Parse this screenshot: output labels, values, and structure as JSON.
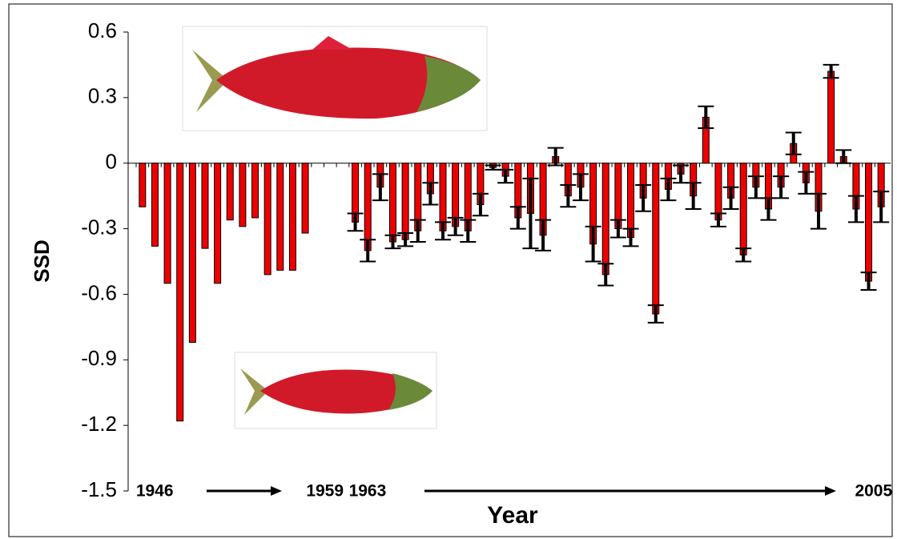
{
  "chart_data": {
    "type": "bar",
    "y_label": "SSD",
    "x_label": "Year",
    "categories": [
      "1946",
      null,
      null,
      null,
      null,
      null,
      null,
      null,
      null,
      null,
      null,
      null,
      null,
      "1959",
      null,
      null,
      null,
      "1963",
      null,
      null,
      null,
      null,
      null,
      null,
      null,
      null,
      null,
      null,
      null,
      null,
      null,
      null,
      null,
      null,
      null,
      null,
      null,
      null,
      null,
      null,
      null,
      null,
      null,
      null,
      null,
      null,
      null,
      null,
      null,
      null,
      null,
      null,
      null,
      null,
      null,
      null,
      null,
      null,
      null,
      "2005"
    ],
    "values": [
      -0.2,
      -0.38,
      -0.55,
      -1.18,
      -0.82,
      -0.39,
      -0.55,
      -0.26,
      -0.29,
      -0.25,
      -0.51,
      -0.49,
      -0.49,
      -0.32,
      null,
      null,
      null,
      -0.27,
      -0.4,
      -0.11,
      -0.36,
      -0.35,
      -0.31,
      -0.14,
      -0.31,
      -0.29,
      -0.31,
      -0.19,
      -0.02,
      -0.06,
      -0.25,
      -0.23,
      -0.33,
      0.03,
      -0.15,
      -0.11,
      -0.37,
      -0.51,
      -0.3,
      -0.34,
      -0.16,
      -0.69,
      -0.12,
      -0.05,
      -0.15,
      0.21,
      -0.26,
      -0.16,
      -0.42,
      -0.11,
      -0.21,
      -0.11,
      0.09,
      -0.09,
      -0.22,
      0.42,
      0.03,
      -0.21,
      -0.54,
      -0.2
    ],
    "errors": [
      null,
      null,
      null,
      null,
      null,
      null,
      null,
      null,
      null,
      null,
      null,
      null,
      null,
      null,
      null,
      null,
      null,
      0.04,
      0.05,
      0.06,
      0.03,
      0.03,
      0.05,
      0.05,
      0.04,
      0.04,
      0.05,
      0.05,
      0.01,
      0.03,
      0.05,
      0.16,
      0.07,
      0.04,
      0.05,
      0.06,
      0.08,
      0.05,
      0.04,
      0.04,
      0.06,
      0.04,
      0.05,
      0.04,
      0.06,
      0.05,
      0.03,
      0.05,
      0.03,
      0.05,
      0.05,
      0.05,
      0.05,
      0.05,
      0.08,
      0.03,
      0.03,
      0.06,
      0.04,
      0.07
    ],
    "color": "#ee0000",
    "ylim": [
      -1.5,
      0.6
    ],
    "yticks": [
      0.6,
      0.3,
      0,
      -0.3,
      -0.6,
      -0.9,
      -1.2,
      -1.5
    ]
  }
}
